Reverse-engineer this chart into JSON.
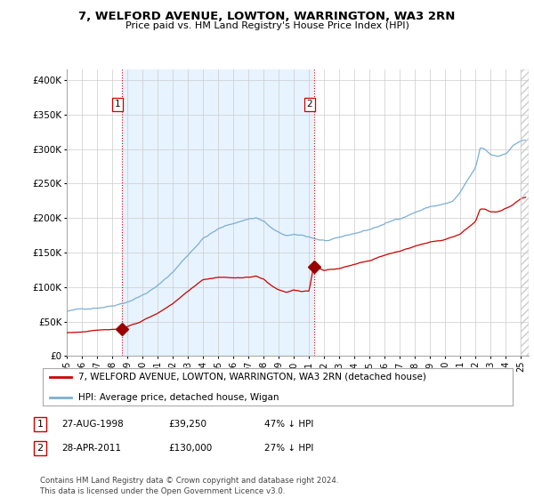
{
  "title": "7, WELFORD AVENUE, LOWTON, WARRINGTON, WA3 2RN",
  "subtitle": "Price paid vs. HM Land Registry's House Price Index (HPI)",
  "ylabel_ticks": [
    "£0",
    "£50K",
    "£100K",
    "£150K",
    "£200K",
    "£250K",
    "£300K",
    "£350K",
    "£400K"
  ],
  "ytick_values": [
    0,
    50000,
    100000,
    150000,
    200000,
    250000,
    300000,
    350000,
    400000
  ],
  "ylim": [
    0,
    415000
  ],
  "sale1_date_x": 1998.65,
  "sale1_price": 39250,
  "sale1_label": "1",
  "sale2_date_x": 2011.32,
  "sale2_price": 130000,
  "sale2_label": "2",
  "red_color": "#cc0000",
  "blue_color": "#7bafd4",
  "shade_color": "#ddeeff",
  "vline_color": "#cc0000",
  "legend_line1": "7, WELFORD AVENUE, LOWTON, WARRINGTON, WA3 2RN (detached house)",
  "legend_line2": "HPI: Average price, detached house, Wigan",
  "table_row1": [
    "1",
    "27-AUG-1998",
    "£39,250",
    "47% ↓ HPI"
  ],
  "table_row2": [
    "2",
    "28-APR-2011",
    "£130,000",
    "27% ↓ HPI"
  ],
  "footnote": "Contains HM Land Registry data © Crown copyright and database right 2024.\nThis data is licensed under the Open Government Licence v3.0.",
  "background_color": "#ffffff",
  "xlim_start": 1995.0,
  "xlim_end": 2025.5
}
